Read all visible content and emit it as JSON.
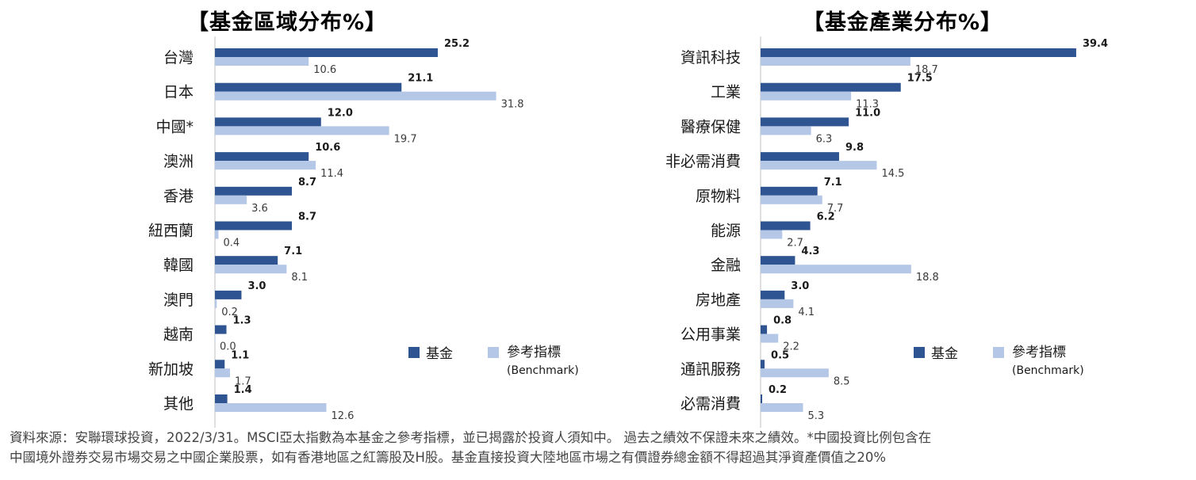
{
  "colors": {
    "fund": "#2e5591",
    "benchmark": "#b4c7e7",
    "axis": "#bfbfbf"
  },
  "legend": {
    "fund": "基金",
    "benchmark": "參考指標",
    "benchmark_sub": "(Benchmark)"
  },
  "chart_data": [
    {
      "type": "bar",
      "orientation": "horizontal",
      "title": "【基金區域分布%】",
      "categories": [
        "台灣",
        "日本",
        "中國*",
        "澳洲",
        "香港",
        "紐西蘭",
        "韓國",
        "澳門",
        "越南",
        "新加坡",
        "其他"
      ],
      "series": [
        {
          "name": "基金",
          "values": [
            25.2,
            21.1,
            12.0,
            10.6,
            8.7,
            8.7,
            7.1,
            3.0,
            1.3,
            1.1,
            1.4
          ]
        },
        {
          "name": "參考指標",
          "values": [
            10.6,
            31.8,
            19.7,
            11.4,
            3.6,
            0.4,
            8.1,
            0.2,
            0.0,
            1.7,
            12.6
          ]
        }
      ],
      "value_labels": {
        "fund": [
          "25.2",
          "21.1",
          "12.0",
          "10.6",
          "8.7",
          "8.7",
          "7.1",
          "3.0",
          "1.3",
          "1.1",
          "1.4"
        ],
        "benchmark": [
          "10.6",
          "31.8",
          "19.7",
          "11.4",
          "3.6",
          "0.4",
          "8.1",
          "0.2",
          "0.0",
          "1.7",
          "12.6"
        ]
      },
      "xlim": [
        0,
        40
      ],
      "legend_position": "bottom-right"
    },
    {
      "type": "bar",
      "orientation": "horizontal",
      "title": "【基金產業分布%】",
      "categories": [
        "資訊科技",
        "工業",
        "醫療保健",
        "非必需消費",
        "原物料",
        "能源",
        "金融",
        "房地產",
        "公用事業",
        "通訊服務",
        "必需消費"
      ],
      "series": [
        {
          "name": "基金",
          "values": [
            39.4,
            17.5,
            11.0,
            9.8,
            7.1,
            6.2,
            4.3,
            3.0,
            0.8,
            0.5,
            0.2
          ]
        },
        {
          "name": "參考指標",
          "values": [
            18.7,
            11.3,
            6.3,
            14.5,
            7.7,
            2.7,
            18.8,
            4.1,
            2.2,
            8.5,
            5.3
          ]
        }
      ],
      "value_labels": {
        "fund": [
          "39.4",
          "17.5",
          "11.0",
          "9.8",
          "7.1",
          "6.2",
          "4.3",
          "3.0",
          "0.8",
          "0.5",
          "0.2"
        ],
        "benchmark": [
          "18.7",
          "11.3",
          "6.3",
          "14.5",
          "7.7",
          "2.7",
          "18.8",
          "4.1",
          "2.2",
          "8.5",
          "5.3"
        ]
      },
      "xlim": [
        0,
        40
      ],
      "legend_position": "bottom-right"
    }
  ],
  "footer": {
    "line1": "資料來源：安聯環球投資，2022/3/31。MSCI亞太指數為本基金之參考指標，並已揭露於投資人須知中。 過去之績效不保證未來之績效。*中國投資比例包含在",
    "line2": "中國境外證券交易市場交易之中國企業股票，如有香港地區之紅籌股及H股。基金直接投資大陸地區市場之有價證券總金額不得超過其淨資產價值之20%"
  }
}
